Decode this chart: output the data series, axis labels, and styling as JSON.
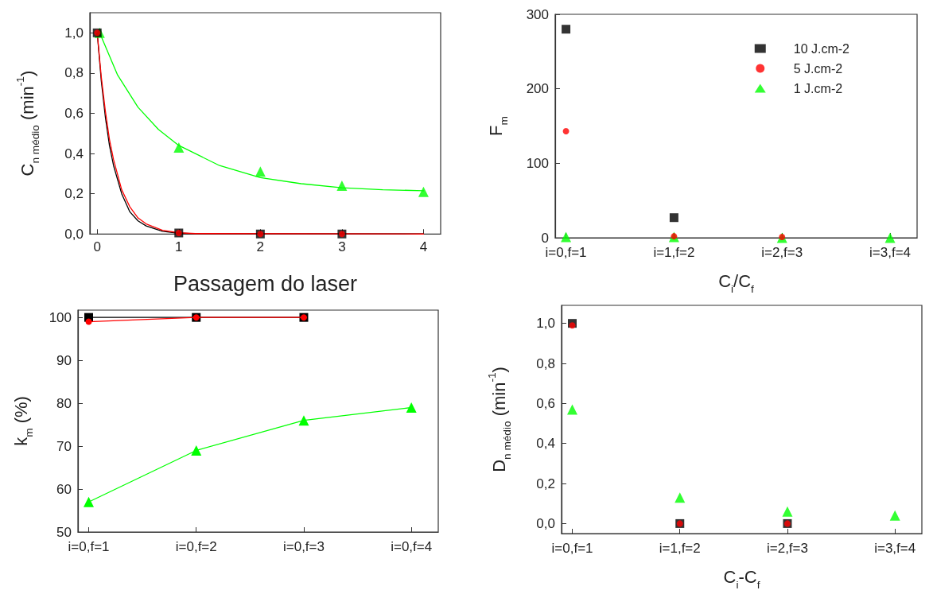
{
  "chart_data": [
    {
      "type": "line",
      "xlabel": "Passagem do laser",
      "ylabel": "C$_{n médio}$ (min$^{-1}$)",
      "xlim": [
        -0.09,
        4.21
      ],
      "ylim": [
        0,
        1.1
      ],
      "xticks": [
        0,
        1,
        2,
        3,
        4
      ],
      "yticks": [
        {
          "value": 0,
          "label": "0,0"
        },
        {
          "value": 0.2,
          "label": "0,2"
        },
        {
          "value": 0.4,
          "label": "0,4"
        },
        {
          "value": 0.6,
          "label": "0,6"
        },
        {
          "value": 0.8,
          "label": "0,8"
        },
        {
          "value": 1.0,
          "label": "1,0"
        }
      ],
      "grid": false,
      "series": [
        {
          "type": "line",
          "marker": "none",
          "color": "#000000",
          "x": [
            0,
            0.05,
            0.1,
            0.15,
            0.2,
            0.3,
            0.4,
            0.5,
            0.6,
            0.8,
            1.0,
            1.2,
            4
          ],
          "values": [
            1,
            0.76,
            0.58,
            0.44,
            0.34,
            0.2,
            0.11,
            0.065,
            0.04,
            0.013,
            0.004,
            0.001,
            0
          ]
        },
        {
          "type": "line",
          "marker": "none",
          "color": "#ff0000",
          "x": [
            0,
            0.05,
            0.1,
            0.15,
            0.2,
            0.3,
            0.4,
            0.5,
            0.6,
            0.8,
            1.0,
            1.2,
            4
          ],
          "values": [
            1,
            0.78,
            0.61,
            0.47,
            0.37,
            0.22,
            0.135,
            0.08,
            0.05,
            0.018,
            0.006,
            0.002,
            0
          ]
        },
        {
          "type": "line",
          "marker": "none",
          "color": "#00ff00",
          "x": [
            0.03,
            0.25,
            0.5,
            0.75,
            1,
            1.5,
            2,
            2.5,
            3,
            3.5,
            4
          ],
          "values": [
            1,
            0.79,
            0.63,
            0.52,
            0.44,
            0.34,
            0.28,
            0.25,
            0.23,
            0.22,
            0.215
          ]
        },
        {
          "type": "scatter",
          "marker": "square",
          "color": "#000000",
          "x": [
            0,
            1,
            2,
            3
          ],
          "values": [
            1,
            0.005,
            0,
            0
          ]
        },
        {
          "type": "scatter",
          "marker": "circle",
          "color": "#ff0000",
          "x": [
            0,
            1,
            2,
            3
          ],
          "values": [
            1,
            0.005,
            0,
            0
          ]
        },
        {
          "type": "scatter",
          "marker": "triangle",
          "color": "#00ff00",
          "x": [
            0.03,
            1,
            2,
            3,
            4
          ],
          "values": [
            1,
            0.43,
            0.31,
            0.24,
            0.21
          ]
        }
      ]
    },
    {
      "type": "scatter",
      "xlabel": "C$_{i}$/C$_{f}$",
      "ylabel": "F$_{m}$",
      "categories": [
        "i=0,f=1",
        "i=1,f=2",
        "i=2,f=3",
        "i=3,f=4"
      ],
      "ylim": [
        0,
        300
      ],
      "yticks": [
        0,
        100,
        200,
        300
      ],
      "grid": false,
      "legend": "top right",
      "series": [
        {
          "name": "10 J.cm-2",
          "marker": "square",
          "color": "#000000",
          "values": [
            280,
            27,
            null,
            null
          ]
        },
        {
          "name": "5 J.cm-2",
          "marker": "circle",
          "color": "#ff0000",
          "values": [
            143,
            2,
            1,
            null
          ]
        },
        {
          "name": "1 J.cm-2",
          "marker": "triangle",
          "color": "#00ff00",
          "values": [
            1,
            1,
            0,
            0
          ]
        }
      ]
    },
    {
      "type": "line",
      "ylabel": "k$_{m}$ (%)",
      "categories": [
        "i=0,f=1",
        "i=0,f=2",
        "i=0,f=3",
        "i=0,f=4"
      ],
      "ylim": [
        50,
        101.7
      ],
      "yticks": [
        50,
        60,
        70,
        80,
        90,
        100
      ],
      "grid": false,
      "series": [
        {
          "marker": "square",
          "color": "#000000",
          "values": [
            100,
            100,
            100,
            null
          ]
        },
        {
          "marker": "circle",
          "color": "#ff0000",
          "values": [
            99,
            100,
            100,
            null
          ]
        },
        {
          "marker": "triangle",
          "color": "#00ff00",
          "values": [
            57,
            69,
            76,
            79
          ]
        }
      ]
    },
    {
      "type": "scatter",
      "xlabel": "C$_{i}$-C$_{f}$",
      "ylabel": "D$_{n médio}$ (min$^{-1}$)",
      "categories": [
        "i=0,f=1",
        "i=1,f=2",
        "i=2,f=3",
        "i=3,f=4"
      ],
      "ylim": [
        -0.05,
        1.09
      ],
      "yticks": [
        {
          "value": 0,
          "label": "0,0"
        },
        {
          "value": 0.2,
          "label": "0,2"
        },
        {
          "value": 0.4,
          "label": "0,4"
        },
        {
          "value": 0.6,
          "label": "0,6"
        },
        {
          "value": 0.8,
          "label": "0,8"
        },
        {
          "value": 1.0,
          "label": "1,0"
        }
      ],
      "grid": false,
      "series": [
        {
          "marker": "square",
          "color": "#000000",
          "values": [
            1.0,
            0,
            0,
            null
          ]
        },
        {
          "marker": "circle",
          "color": "#ff0000",
          "values": [
            0.99,
            0,
            0,
            null
          ]
        },
        {
          "marker": "triangle",
          "color": "#00ff00",
          "values": [
            0.57,
            0.13,
            0.06,
            0.04
          ]
        }
      ]
    }
  ]
}
